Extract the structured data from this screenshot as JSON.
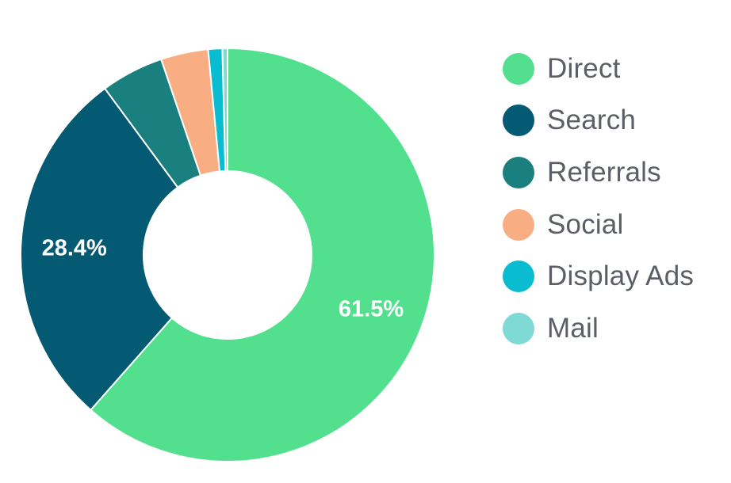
{
  "chart_data": {
    "type": "pie",
    "categories": [
      "Direct",
      "Search",
      "Referrals",
      "Social",
      "Display Ads",
      "Mail"
    ],
    "values": [
      61.5,
      28.4,
      4.9,
      3.7,
      1.1,
      0.4
    ],
    "data_labels": [
      "61.5%",
      "28.4%",
      "",
      "",
      "",
      ""
    ],
    "colors": [
      "#52e08f",
      "#045a72",
      "#1a807f",
      "#f9ad83",
      "#0abcd0",
      "#7fdad6"
    ],
    "donut": true,
    "start_angle_deg": 0,
    "direction": "clockwise",
    "legend": {
      "position": "right",
      "marker": "circle"
    },
    "title": "",
    "xlabel": "",
    "ylabel": ""
  }
}
